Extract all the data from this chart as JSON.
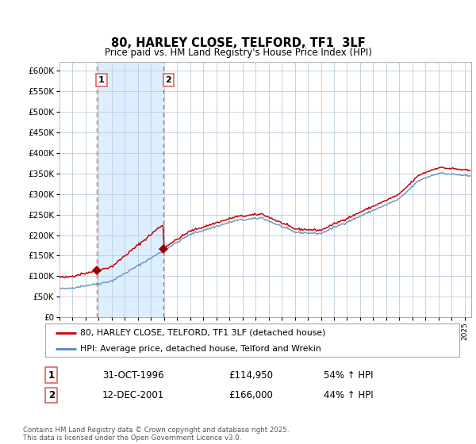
{
  "title": "80, HARLEY CLOSE, TELFORD, TF1  3LF",
  "subtitle": "Price paid vs. HM Land Registry's House Price Index (HPI)",
  "legend_line1": "80, HARLEY CLOSE, TELFORD, TF1 3LF (detached house)",
  "legend_line2": "HPI: Average price, detached house, Telford and Wrekin",
  "sale1_label": "1",
  "sale1_date": "31-OCT-1996",
  "sale1_price": "£114,950",
  "sale1_hpi": "54% ↑ HPI",
  "sale2_label": "2",
  "sale2_date": "12-DEC-2001",
  "sale2_price": "£166,000",
  "sale2_hpi": "44% ↑ HPI",
  "footer": "Contains HM Land Registry data © Crown copyright and database right 2025.\nThis data is licensed under the Open Government Licence v3.0.",
  "red_line_color": "#cc0000",
  "blue_line_color": "#5588bb",
  "sale_marker_color": "#990000",
  "vline_color": "#dd6666",
  "grid_color": "#bbccdd",
  "shade_color": "#ddeeff",
  "bg_color": "#ffffff",
  "ylim": [
    0,
    620000
  ],
  "yticks": [
    0,
    50000,
    100000,
    150000,
    200000,
    250000,
    300000,
    350000,
    400000,
    450000,
    500000,
    550000,
    600000
  ],
  "sale1_x": 1996.83,
  "sale1_y": 114950,
  "sale2_x": 2001.95,
  "sale2_y": 166000,
  "xmin": 1994.0,
  "xmax": 2025.5,
  "sale1_hpi_pct": 1.54,
  "sale2_hpi_pct": 1.44
}
